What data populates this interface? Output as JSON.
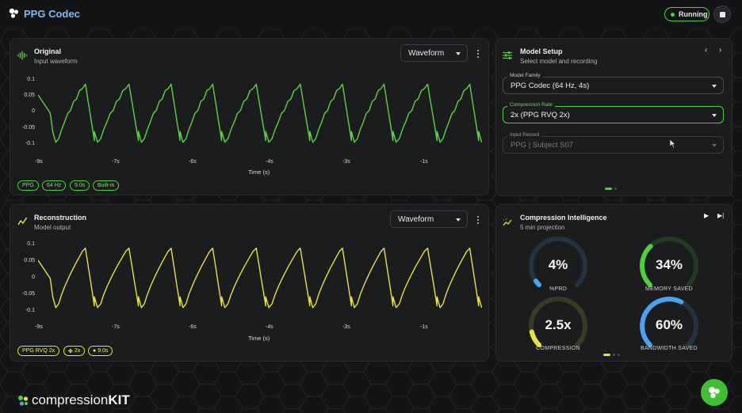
{
  "app": {
    "title": "PPG Codec",
    "status": "Running"
  },
  "original": {
    "title": "Original",
    "subtitle": "Input waveform",
    "view": "Waveform",
    "color": "#5bd33f",
    "yticks": [
      "0.1",
      "0.05",
      "0",
      "-0.05",
      "-0.1"
    ],
    "xticks": [
      "-9s",
      "-7s",
      "-6s",
      "-4s",
      "-3s",
      "-1s"
    ],
    "xlabel": "Time (s)",
    "chips": [
      "PPG",
      "64 Hz",
      "9.0s",
      "Built-in"
    ]
  },
  "reconstruction": {
    "title": "Reconstruction",
    "subtitle": "Model output",
    "view": "Waveform",
    "color": "#e6e23a",
    "yticks": [
      "0.1",
      "0.05",
      "0",
      "-0.05",
      "-0.1"
    ],
    "xticks": [
      "-9s",
      "-7s",
      "-6s",
      "-4s",
      "-3s",
      "-1s"
    ],
    "xlabel": "Time (s)",
    "chips": [
      "PPG RVQ 2x",
      "2x",
      "9.0s"
    ]
  },
  "model_setup": {
    "title": "Model Setup",
    "subtitle": "Select model and recording",
    "family_label": "Model Family",
    "family_value": "PPG Codec (64 Hz, 4s)",
    "rate_label": "Compression Rate",
    "rate_value": "2x (PPG RVQ 2x)",
    "record_label": "Input Record",
    "record_value": "PPG | Subject S07"
  },
  "intelligence": {
    "title": "Compression Intelligence",
    "subtitle": "5 min projection",
    "gauges": [
      {
        "value": "4%",
        "label": "%PRD",
        "fraction": 0.04,
        "color": "#4aa3f0"
      },
      {
        "value": "34%",
        "label": "MEMORY SAVED",
        "fraction": 0.34,
        "color": "#4cd137"
      },
      {
        "value": "2.5x",
        "label": "COMPRESSION",
        "fraction": 0.12,
        "color": "#e6e23a"
      },
      {
        "value": "60%",
        "label": "BANDWIDTH SAVED",
        "fraction": 0.6,
        "color": "#4aa3f0"
      }
    ]
  },
  "footer": {
    "brand_light": "compression",
    "brand_bold": "KIT"
  },
  "chart_data": [
    {
      "type": "line",
      "title": "Original",
      "xlabel": "Time (s)",
      "ylim": [
        -0.13,
        0.13
      ],
      "xlim": [
        -9.5,
        -0.4
      ],
      "beats": [
        -9.2,
        -8.35,
        -7.45,
        -6.6,
        -5.75,
        -4.85,
        -3.95,
        -3.1,
        -2.25,
        -1.35,
        -0.5
      ],
      "peak": 0.1,
      "trough": -0.1
    },
    {
      "type": "line",
      "title": "Reconstruction",
      "xlabel": "Time (s)",
      "ylim": [
        -0.13,
        0.13
      ],
      "xlim": [
        -9.5,
        -0.4
      ],
      "beats": [
        -9.2,
        -8.35,
        -7.45,
        -6.6,
        -5.75,
        -4.85,
        -3.95,
        -3.1,
        -2.25,
        -1.35,
        -0.5
      ],
      "peak": 0.105,
      "trough": -0.1
    }
  ]
}
